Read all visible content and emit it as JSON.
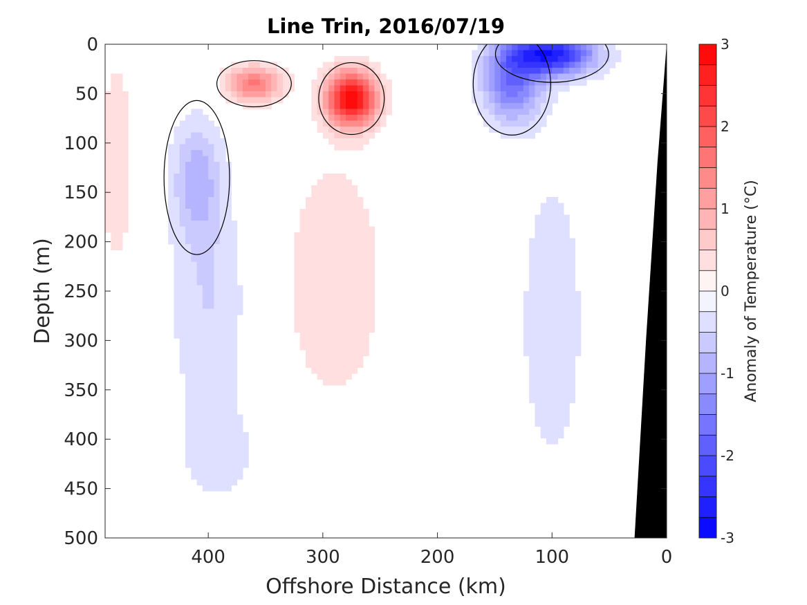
{
  "chart_data": {
    "type": "heatmap",
    "title": "Line Trin, 2016/07/19",
    "xlabel": "Offshore Distance (km)",
    "ylabel": "Depth (m)",
    "x_reversed": true,
    "y_reversed": true,
    "xlim": [
      0,
      490
    ],
    "ylim": [
      0,
      500
    ],
    "xticks": [
      400,
      300,
      200,
      100,
      0
    ],
    "yticks": [
      0,
      50,
      100,
      150,
      200,
      250,
      300,
      350,
      400,
      450,
      500
    ],
    "colorbar": {
      "label": "Anomaly of Temperature (°C)",
      "range": [
        -3,
        3
      ],
      "ticks": [
        3,
        2,
        1,
        0,
        -1,
        -2,
        -3
      ],
      "levels": 24,
      "neg_color": "#0000ff",
      "pos_color": "#ff0000",
      "zero_color": "#ffffff"
    },
    "zero_contour_color": "#000000",
    "seafloor_color": "#000000",
    "features": [
      {
        "kind": "warm",
        "center_km": 275,
        "center_depth_m": 55,
        "peak_anomaly": 3.0
      },
      {
        "kind": "warm",
        "center_km": 360,
        "center_depth_m": 40,
        "peak_anomaly": 1.6
      },
      {
        "kind": "warm",
        "center_km": 290,
        "center_depth_m": 240,
        "peak_anomaly": 0.5
      },
      {
        "kind": "warm",
        "center_km": 480,
        "center_depth_m": 120,
        "peak_anomaly": 0.5
      },
      {
        "kind": "cool",
        "center_km": 100,
        "center_depth_m": 10,
        "peak_anomaly": -2.6
      },
      {
        "kind": "cool",
        "center_km": 135,
        "center_depth_m": 40,
        "peak_anomaly": -1.6
      },
      {
        "kind": "cool",
        "center_km": 410,
        "center_depth_m": 135,
        "peak_anomaly": -0.8
      },
      {
        "kind": "cool",
        "center_km": 400,
        "center_depth_m": 260,
        "peak_anomaly": -0.5
      },
      {
        "kind": "cool",
        "center_km": 100,
        "center_depth_m": 280,
        "peak_anomaly": -0.5
      },
      {
        "kind": "cool",
        "center_km": 390,
        "center_depth_m": 420,
        "peak_anomaly": -0.3
      }
    ]
  }
}
